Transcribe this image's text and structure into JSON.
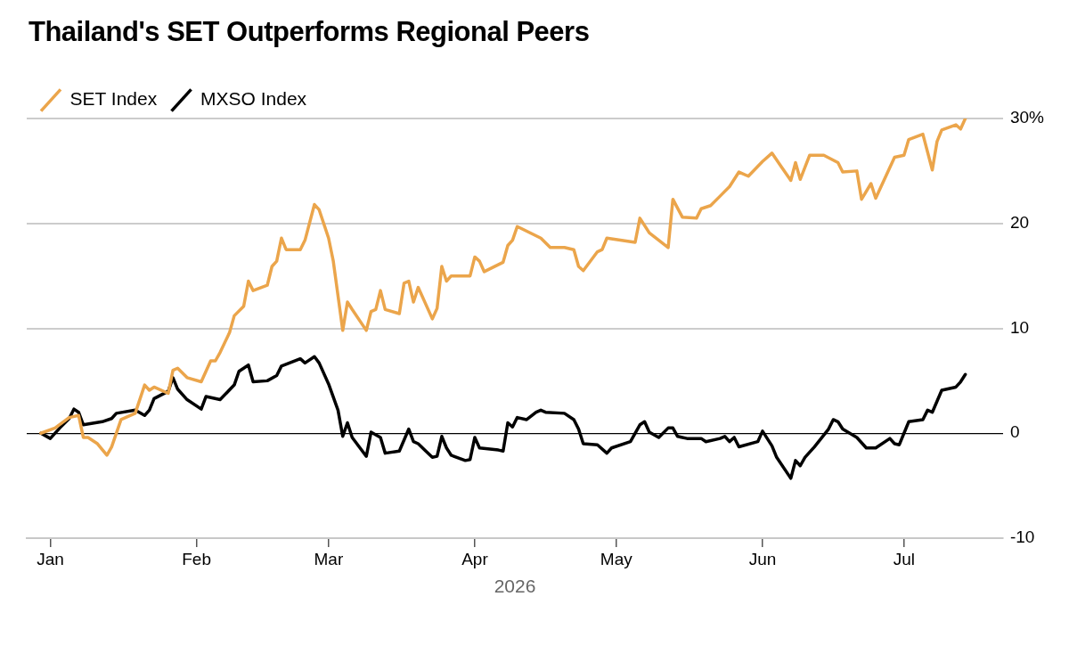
{
  "chart_data": {
    "type": "line",
    "title": "Thailand's SET Outperforms Regional Peers",
    "xlabel": "2026",
    "xlim": [
      "2025-12-27",
      "2026-07-22"
    ],
    "xticks": [
      {
        "value": "2026-01-01",
        "label": "Jan"
      },
      {
        "value": "2026-02-01",
        "label": "Feb"
      },
      {
        "value": "2026-03-01",
        "label": "Mar"
      },
      {
        "value": "2026-04-01",
        "label": "Apr"
      },
      {
        "value": "2026-05-01",
        "label": "May"
      },
      {
        "value": "2026-06-01",
        "label": "Jun"
      },
      {
        "value": "2026-07-01",
        "label": "Jul"
      }
    ],
    "ylim": [
      -10,
      30
    ],
    "yticks": [
      -10,
      0,
      10,
      20,
      {
        "value": 30,
        "label": "30%"
      }
    ],
    "grid": "y",
    "legend": "top left",
    "marker": "none",
    "line_style": "solid",
    "series": [
      {
        "name": "SET Index",
        "color": "#eba54b",
        "x": [
          "2025-12-30",
          "2026-01-02",
          "2026-01-05",
          "2026-01-07",
          "2026-01-08",
          "2026-01-09",
          "2026-01-11",
          "2026-01-13",
          "2026-01-14",
          "2026-01-16",
          "2026-01-19",
          "2026-01-21",
          "2026-01-22",
          "2026-01-23",
          "2026-01-26",
          "2026-01-27",
          "2026-01-28",
          "2026-01-30",
          "2026-02-02",
          "2026-02-04",
          "2026-02-05",
          "2026-02-06",
          "2026-02-08",
          "2026-02-09",
          "2026-02-11",
          "2026-02-12",
          "2026-02-13",
          "2026-02-16",
          "2026-02-17",
          "2026-02-18",
          "2026-02-19",
          "2026-02-20",
          "2026-02-23",
          "2026-02-24",
          "2026-02-26",
          "2026-02-27",
          "2026-03-01",
          "2026-03-02",
          "2026-03-04",
          "2026-03-05",
          "2026-03-06",
          "2026-03-09",
          "2026-03-10",
          "2026-03-11",
          "2026-03-12",
          "2026-03-13",
          "2026-03-16",
          "2026-03-17",
          "2026-03-18",
          "2026-03-19",
          "2026-03-20",
          "2026-03-23",
          "2026-03-24",
          "2026-03-25",
          "2026-03-26",
          "2026-03-27",
          "2026-03-31",
          "2026-04-01",
          "2026-04-02",
          "2026-04-03",
          "2026-04-07",
          "2026-04-08",
          "2026-04-09",
          "2026-04-10",
          "2026-04-15",
          "2026-04-17",
          "2026-04-20",
          "2026-04-22",
          "2026-04-23",
          "2026-04-24",
          "2026-04-27",
          "2026-04-28",
          "2026-04-29",
          "2026-05-05",
          "2026-05-06",
          "2026-05-08",
          "2026-05-12",
          "2026-05-13",
          "2026-05-15",
          "2026-05-18",
          "2026-05-19",
          "2026-05-21",
          "2026-05-23",
          "2026-05-25",
          "2026-05-27",
          "2026-05-29",
          "2026-06-01",
          "2026-06-03",
          "2026-06-05",
          "2026-06-07",
          "2026-06-08",
          "2026-06-09",
          "2026-06-11",
          "2026-06-14",
          "2026-06-17",
          "2026-06-18",
          "2026-06-21",
          "2026-06-22",
          "2026-06-24",
          "2026-06-25",
          "2026-06-29",
          "2026-07-01",
          "2026-07-02",
          "2026-07-05",
          "2026-07-07",
          "2026-07-08",
          "2026-07-09",
          "2026-07-12",
          "2026-07-13",
          "2026-07-14"
        ],
        "values": [
          0,
          0.5,
          1.5,
          1.7,
          -0.4,
          -0.4,
          -1.0,
          -2.1,
          -1.3,
          1.3,
          1.9,
          4.6,
          4.1,
          4.4,
          3.8,
          6.0,
          6.2,
          5.3,
          4.9,
          6.9,
          6.9,
          7.7,
          9.6,
          11.2,
          12.1,
          14.5,
          13.6,
          14.1,
          15.9,
          16.4,
          18.6,
          17.5,
          17.5,
          18.4,
          21.8,
          21.3,
          18.6,
          16.4,
          9.8,
          12.5,
          11.8,
          9.8,
          11.6,
          11.8,
          13.6,
          11.8,
          11.4,
          14.3,
          14.5,
          12.5,
          13.9,
          10.9,
          11.9,
          15.9,
          14.5,
          15.0,
          15.0,
          16.8,
          16.4,
          15.4,
          16.3,
          17.9,
          18.4,
          19.7,
          18.6,
          17.7,
          17.7,
          17.5,
          15.9,
          15.5,
          17.3,
          17.5,
          18.6,
          18.2,
          20.5,
          19.1,
          17.7,
          22.3,
          20.6,
          20.5,
          21.4,
          21.7,
          22.6,
          23.5,
          24.9,
          24.5,
          25.9,
          26.7,
          25.4,
          24.1,
          25.8,
          24.2,
          26.5,
          26.5,
          25.8,
          24.9,
          25.0,
          22.3,
          23.8,
          22.4,
          26.3,
          26.5,
          28.0,
          28.5,
          25.1,
          27.8,
          28.9,
          29.4,
          29.0,
          30.0
        ]
      },
      {
        "name": "MXSO Index",
        "color": "#000000",
        "x": [
          "2025-12-30",
          "2026-01-01",
          "2026-01-03",
          "2026-01-05",
          "2026-01-06",
          "2026-01-07",
          "2026-01-08",
          "2026-01-12",
          "2026-01-14",
          "2026-01-15",
          "2026-01-19",
          "2026-01-21",
          "2026-01-22",
          "2026-01-23",
          "2026-01-26",
          "2026-01-27",
          "2026-01-28",
          "2026-01-30",
          "2026-02-02",
          "2026-02-03",
          "2026-02-06",
          "2026-02-09",
          "2026-02-10",
          "2026-02-12",
          "2026-02-13",
          "2026-02-16",
          "2026-02-18",
          "2026-02-19",
          "2026-02-23",
          "2026-02-24",
          "2026-02-26",
          "2026-02-27",
          "2026-03-01",
          "2026-03-03",
          "2026-03-04",
          "2026-03-05",
          "2026-03-06",
          "2026-03-09",
          "2026-03-10",
          "2026-03-12",
          "2026-03-13",
          "2026-03-16",
          "2026-03-18",
          "2026-03-19",
          "2026-03-20",
          "2026-03-23",
          "2026-03-24",
          "2026-03-25",
          "2026-03-26",
          "2026-03-27",
          "2026-03-30",
          "2026-03-31",
          "2026-04-01",
          "2026-04-02",
          "2026-04-06",
          "2026-04-07",
          "2026-04-08",
          "2026-04-09",
          "2026-04-10",
          "2026-04-12",
          "2026-04-14",
          "2026-04-15",
          "2026-04-16",
          "2026-04-20",
          "2026-04-22",
          "2026-04-23",
          "2026-04-24",
          "2026-04-27",
          "2026-04-29",
          "2026-04-30",
          "2026-05-04",
          "2026-05-06",
          "2026-05-07",
          "2026-05-08",
          "2026-05-10",
          "2026-05-12",
          "2026-05-13",
          "2026-05-14",
          "2026-05-16",
          "2026-05-19",
          "2026-05-20",
          "2026-05-23",
          "2026-05-24",
          "2026-05-25",
          "2026-05-26",
          "2026-05-27",
          "2026-05-31",
          "2026-06-01",
          "2026-06-03",
          "2026-06-04",
          "2026-06-07",
          "2026-06-08",
          "2026-06-09",
          "2026-06-10",
          "2026-06-12",
          "2026-06-15",
          "2026-06-16",
          "2026-06-17",
          "2026-06-18",
          "2026-06-21",
          "2026-06-23",
          "2026-06-25",
          "2026-06-28",
          "2026-06-29",
          "2026-06-30",
          "2026-07-02",
          "2026-07-05",
          "2026-07-06",
          "2026-07-07",
          "2026-07-09",
          "2026-07-12",
          "2026-07-13",
          "2026-07-14"
        ],
        "values": [
          0,
          -0.5,
          0.5,
          1.4,
          2.3,
          2.0,
          0.8,
          1.1,
          1.4,
          1.9,
          2.2,
          1.7,
          2.2,
          3.3,
          4.0,
          5.3,
          4.2,
          3.2,
          2.3,
          3.5,
          3.2,
          4.6,
          5.9,
          6.5,
          4.9,
          5.0,
          5.5,
          6.4,
          7.1,
          6.7,
          7.3,
          6.7,
          4.7,
          2.2,
          -0.3,
          1.0,
          -0.4,
          -2.2,
          0.1,
          -0.4,
          -1.9,
          -1.7,
          0.4,
          -0.8,
          -1.0,
          -2.3,
          -2.2,
          -0.3,
          -1.4,
          -2.1,
          -2.6,
          -2.5,
          -0.4,
          -1.4,
          -1.6,
          -1.7,
          1.0,
          0.6,
          1.5,
          1.3,
          2.0,
          2.2,
          2.0,
          1.9,
          1.3,
          0.4,
          -1.0,
          -1.1,
          -1.9,
          -1.4,
          -0.8,
          0.8,
          1.1,
          0.1,
          -0.4,
          0.5,
          0.5,
          -0.3,
          -0.5,
          -0.5,
          -0.8,
          -0.5,
          -0.3,
          -0.8,
          -0.4,
          -1.3,
          -0.8,
          0.2,
          -1.2,
          -2.3,
          -4.3,
          -2.6,
          -3.1,
          -2.3,
          -1.3,
          0.4,
          1.3,
          1.1,
          0.4,
          -0.4,
          -1.4,
          -1.4,
          -0.5,
          -1.0,
          -1.1,
          1.1,
          1.3,
          2.2,
          2.0,
          4.1,
          4.4,
          4.9,
          5.6
        ]
      }
    ]
  }
}
